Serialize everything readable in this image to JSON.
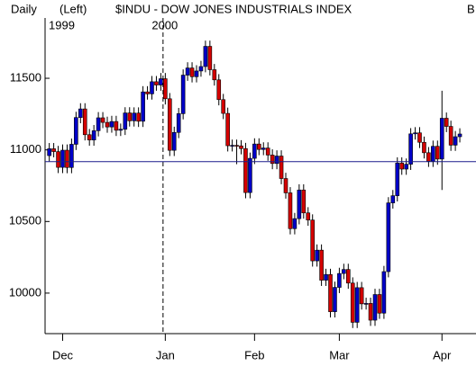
{
  "header": {
    "period": "Daily",
    "axis_side": "(Left)",
    "title": "$INDU - DOW JONES INDUSTRIALS INDEX",
    "right_marker": "B"
  },
  "chart_data": {
    "type": "candlestick",
    "year_labels": [
      {
        "value": 0,
        "label": "1999"
      },
      {
        "value": 26,
        "label": "2000"
      }
    ],
    "xticks": [
      {
        "value": 3,
        "label": "Dec"
      },
      {
        "value": 26,
        "label": "Jan"
      },
      {
        "value": 46,
        "label": "Feb"
      },
      {
        "value": 65,
        "label": "Mar"
      },
      {
        "value": 88,
        "label": "Apr"
      }
    ],
    "ylim": [
      9717,
      11921
    ],
    "yticks": [
      10000,
      10500,
      11000,
      11500
    ],
    "reference_line": 10918,
    "reference_color": "#1c1c8c",
    "up_color": "#0000c8",
    "down_color": "#d40000",
    "open": [
      10960,
      11008,
      10988,
      10878,
      10998,
      10877,
      11039,
      11226,
      11286,
      11106,
      11069,
      11134,
      11224,
      11192,
      11160,
      11198,
      11137,
      11144,
      11258,
      11203,
      11257,
      11200,
      11405,
      11391,
      11476,
      11453,
      11497,
      11357,
      10997,
      11122,
      11253,
      11522,
      11572,
      11511,
      11551,
      11582,
      11723,
      11560,
      11489,
      11351,
      11255,
      11029,
      11032,
      11028,
      11009,
      10702,
      10941,
      11041,
      11003,
      11013,
      10964,
      10905,
      10957,
      10800,
      10700,
      10450,
      10520,
      10720,
      10560,
      10510,
      10225,
      10300,
      10090,
      10130,
      9870,
      10040,
      10137,
      10165,
      10070,
      9796,
      10038,
      9925,
      9928,
      9811,
      9990,
      9860,
      10150,
      10630,
      10680,
      10908,
      10866,
      10900,
      11112,
      11119,
      11053,
      10980,
      10921,
      11025,
      10936,
      11221,
      11164,
      11033,
      11092
    ],
    "high": [
      11048,
      11048,
      11028,
      11038,
      11038,
      11079,
      11266,
      11326,
      11326,
      11146,
      11174,
      11264,
      11264,
      11232,
      11238,
      11238,
      11184,
      11298,
      11298,
      11297,
      11297,
      11445,
      11445,
      11516,
      11516,
      11537,
      11537,
      11397,
      11162,
      11293,
      11562,
      11612,
      11612,
      11591,
      11622,
      11763,
      11763,
      11600,
      11529,
      11391,
      11295,
      11072,
      11072,
      11068,
      11049,
      10981,
      11081,
      11081,
      11053,
      11053,
      11004,
      10997,
      10997,
      10840,
      10740,
      10560,
      10760,
      10760,
      10600,
      10550,
      10340,
      10340,
      10170,
      10170,
      10080,
      10177,
      10205,
      10205,
      10110,
      10078,
      10078,
      9968,
      9968,
      10030,
      10030,
      10190,
      10670,
      10720,
      10948,
      10948,
      10940,
      11152,
      11159,
      11159,
      11093,
      11020,
      11065,
      11065,
      11413,
      11261,
      11204,
      11132,
      11151
    ],
    "low": [
      10920,
      10948,
      10838,
      10838,
      10837,
      10837,
      10999,
      11186,
      11066,
      11029,
      11029,
      11094,
      11152,
      11120,
      11120,
      11097,
      11097,
      11104,
      11163,
      11163,
      11160,
      11160,
      11351,
      11351,
      11413,
      11413,
      11317,
      10957,
      10957,
      11082,
      11213,
      11482,
      11471,
      11471,
      11511,
      11542,
      11520,
      11449,
      11311,
      11215,
      10989,
      10989,
      10900,
      10969,
      10662,
      10662,
      10901,
      10963,
      10963,
      10924,
      10865,
      10865,
      10760,
      10660,
      10410,
      10410,
      10480,
      10520,
      10470,
      10185,
      10185,
      10050,
      10050,
      9830,
      9830,
      10000,
      10097,
      10030,
      9756,
      9756,
      9885,
      9885,
      9771,
      9771,
      9820,
      9820,
      10110,
      10590,
      10640,
      10826,
      10826,
      10860,
      11072,
      11013,
      10940,
      10881,
      10881,
      10896,
      10720,
      11124,
      10993,
      10993,
      11052
    ],
    "close": [
      11008,
      10988,
      10878,
      10998,
      10877,
      11039,
      11226,
      11286,
      11106,
      11069,
      11134,
      11224,
      11192,
      11160,
      11198,
      11137,
      11144,
      11258,
      11203,
      11257,
      11200,
      11405,
      11391,
      11476,
      11453,
      11497,
      11357,
      10997,
      11122,
      11253,
      11522,
      11572,
      11511,
      11551,
      11582,
      11723,
      11560,
      11489,
      11351,
      11255,
      11029,
      11032,
      11028,
      11009,
      10702,
      10941,
      11041,
      11003,
      11013,
      10964,
      10905,
      10957,
      10800,
      10700,
      10450,
      10520,
      10720,
      10560,
      10510,
      10225,
      10300,
      10090,
      10130,
      9870,
      10040,
      10137,
      10165,
      10070,
      9796,
      10038,
      9925,
      9928,
      9811,
      9990,
      9860,
      10150,
      10630,
      10680,
      10908,
      10866,
      10900,
      11112,
      11119,
      11053,
      10980,
      10921,
      11025,
      10936,
      11221,
      11164,
      11033,
      11092,
      11111
    ]
  }
}
